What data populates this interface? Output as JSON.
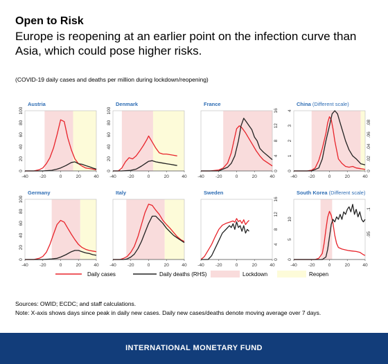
{
  "header": {
    "title": "Open to Risk",
    "subtitle": "Europe is reopening at an earlier point on the infection curve than Asia, which could pose higher risks.",
    "caption": "(COVID-19 daily cases and deaths per million during lockdown/reopening)"
  },
  "legend": {
    "cases": "Daily cases",
    "deaths": "Daily deaths (RHS)",
    "lockdown": "Lockdown",
    "reopen": "Reopen"
  },
  "footnotes": {
    "sources": "Sources: OWID; ECDC; and staff calculations.",
    "note": "Note: X-axis shows days since peak in daily new cases. Daily new cases/deaths denote moving average over 7 days."
  },
  "footer": {
    "org": "INTERNATIONAL MONETARY FUND"
  },
  "colors": {
    "cases": "#e8242b",
    "deaths": "#222222",
    "lockdown": "#f9dcdc",
    "reopen": "#fdfbd9",
    "title_blue": "#2e6db4",
    "footer": "#123d7a"
  },
  "chart_data": [
    {
      "type": "line",
      "title": "Austria",
      "scale_note": "",
      "xlim": [
        -40,
        40
      ],
      "xticks": [
        -40,
        -20,
        0,
        20,
        40
      ],
      "ylim": [
        0,
        100
      ],
      "yticks": [
        0,
        20,
        40,
        60,
        80,
        100
      ],
      "y2": null,
      "lockdown": [
        -18,
        14
      ],
      "reopen": [
        14,
        40
      ],
      "series": [
        {
          "name": "Daily cases",
          "axis": "y",
          "x": [
            -40,
            -30,
            -24,
            -20,
            -16,
            -12,
            -8,
            -4,
            0,
            4,
            8,
            12,
            16,
            20,
            24,
            28,
            32,
            36,
            40
          ],
          "values": [
            0,
            0,
            2,
            5,
            12,
            22,
            38,
            60,
            85,
            82,
            55,
            35,
            20,
            12,
            8,
            5,
            4,
            3,
            2
          ]
        },
        {
          "name": "Daily deaths",
          "axis": "y",
          "x": [
            -40,
            -20,
            -10,
            -4,
            0,
            6,
            12,
            16,
            20,
            24,
            28,
            32,
            36,
            40
          ],
          "values": [
            0,
            0,
            1,
            3,
            5,
            9,
            14,
            15,
            12,
            11,
            9,
            7,
            5,
            3
          ]
        }
      ]
    },
    {
      "type": "line",
      "title": "Denmark",
      "scale_note": "",
      "xlim": [
        -40,
        40
      ],
      "xticks": [
        -40,
        -20,
        0,
        20,
        40
      ],
      "ylim": [
        0,
        100
      ],
      "yticks": [
        0,
        20,
        40,
        60,
        80,
        100
      ],
      "y2": null,
      "lockdown": [
        -30,
        5
      ],
      "reopen": [
        5,
        40
      ],
      "series": [
        {
          "name": "Daily cases",
          "axis": "y",
          "x": [
            -40,
            -34,
            -30,
            -26,
            -22,
            -18,
            -14,
            -10,
            -6,
            -2,
            0,
            4,
            8,
            12,
            16,
            20,
            24,
            28,
            32
          ],
          "values": [
            0,
            0,
            5,
            15,
            22,
            20,
            25,
            33,
            42,
            52,
            58,
            48,
            38,
            30,
            28,
            28,
            27,
            26,
            25
          ]
        },
        {
          "name": "Daily deaths",
          "axis": "y",
          "x": [
            -40,
            -30,
            -20,
            -14,
            -8,
            -4,
            0,
            4,
            8,
            12,
            16,
            20,
            24,
            28,
            32
          ],
          "values": [
            0,
            0,
            1,
            3,
            8,
            12,
            16,
            17,
            15,
            14,
            13,
            12,
            11,
            10,
            9
          ]
        }
      ]
    },
    {
      "type": "line",
      "title": "France",
      "scale_note": "",
      "xlim": [
        -40,
        40
      ],
      "xticks": [
        -40,
        -20,
        0,
        20,
        40
      ],
      "ylim": [
        0,
        60
      ],
      "yticks": [],
      "y2": {
        "lim": [
          0,
          16
        ],
        "ticks": [
          0,
          4,
          8,
          12,
          16
        ]
      },
      "lockdown": [
        -15,
        40
      ],
      "reopen": null,
      "series": [
        {
          "name": "Daily cases",
          "axis": "y",
          "x": [
            -40,
            -30,
            -20,
            -15,
            -10,
            -6,
            -3,
            0,
            3,
            6,
            10,
            14,
            18,
            22,
            26,
            30,
            35,
            40
          ],
          "values": [
            0,
            0,
            1,
            3,
            8,
            18,
            30,
            42,
            45,
            43,
            38,
            32,
            26,
            20,
            15,
            11,
            8,
            5
          ]
        },
        {
          "name": "Daily deaths",
          "axis": "y2",
          "x": [
            -40,
            -20,
            -10,
            -6,
            -2,
            2,
            5,
            8,
            11,
            14,
            17,
            20,
            23,
            26,
            30,
            35,
            40
          ],
          "values": [
            0,
            0,
            1,
            2,
            4,
            8,
            12,
            14,
            13,
            12,
            11,
            9,
            8,
            6,
            5,
            4,
            3
          ]
        }
      ]
    },
    {
      "type": "line",
      "title": "China",
      "scale_note": "(Different scale)",
      "xlim": [
        -40,
        40
      ],
      "xticks": [
        -40,
        -20,
        0,
        20,
        40
      ],
      "ylim": [
        0,
        4
      ],
      "yticks": [
        0,
        1,
        2,
        3,
        4
      ],
      "y2": {
        "lim": [
          0,
          0.1
        ],
        "ticks": [
          0,
          0.02,
          0.04,
          0.06,
          0.08
        ]
      },
      "lockdown": [
        -20,
        35
      ],
      "reopen": [
        35,
        40
      ],
      "series": [
        {
          "name": "Daily cases",
          "axis": "y",
          "x": [
            -40,
            -25,
            -20,
            -16,
            -12,
            -8,
            -4,
            -2,
            0,
            2,
            4,
            6,
            8,
            10,
            14,
            18,
            22,
            26,
            30,
            40
          ],
          "values": [
            0,
            0,
            0.05,
            0.2,
            0.7,
            1.5,
            2.5,
            3.2,
            3.6,
            3.4,
            2.8,
            2.0,
            1.4,
            0.8,
            0.5,
            0.3,
            0.25,
            0.3,
            0.2,
            0.1
          ]
        },
        {
          "name": "Daily deaths",
          "axis": "y2",
          "x": [
            -40,
            -20,
            -12,
            -8,
            -4,
            0,
            3,
            6,
            9,
            12,
            15,
            18,
            22,
            26,
            30,
            35,
            40
          ],
          "values": [
            0,
            0,
            0.005,
            0.02,
            0.05,
            0.075,
            0.095,
            0.1,
            0.095,
            0.08,
            0.065,
            0.05,
            0.035,
            0.025,
            0.02,
            0.012,
            0.01
          ]
        }
      ]
    },
    {
      "type": "line",
      "title": "Germany",
      "scale_note": "",
      "xlim": [
        -40,
        40
      ],
      "xticks": [
        -40,
        -20,
        0,
        20,
        40
      ],
      "ylim": [
        0,
        100
      ],
      "yticks": [
        0,
        20,
        40,
        60,
        80,
        100
      ],
      "y2": null,
      "lockdown": [
        -10,
        22
      ],
      "reopen": [
        22,
        40
      ],
      "series": [
        {
          "name": "Daily cases",
          "axis": "y",
          "x": [
            -40,
            -30,
            -24,
            -20,
            -16,
            -12,
            -8,
            -4,
            0,
            4,
            8,
            12,
            16,
            20,
            24,
            28,
            32,
            36,
            40
          ],
          "values": [
            0,
            0,
            2,
            5,
            12,
            25,
            42,
            58,
            65,
            62,
            52,
            42,
            33,
            25,
            20,
            17,
            15,
            14,
            13
          ]
        },
        {
          "name": "Daily deaths",
          "axis": "y",
          "x": [
            -40,
            -20,
            -10,
            -4,
            0,
            6,
            12,
            16,
            20,
            24,
            28,
            32,
            36,
            40
          ],
          "values": [
            0,
            0,
            1,
            2,
            4,
            8,
            13,
            15,
            15,
            13,
            11,
            10,
            8,
            7
          ]
        }
      ]
    },
    {
      "type": "line",
      "title": "Italy",
      "scale_note": "",
      "xlim": [
        -40,
        40
      ],
      "xticks": [
        -40,
        -20,
        0,
        20,
        40
      ],
      "ylim": [
        0,
        100
      ],
      "yticks": [],
      "y2": null,
      "lockdown": [
        -25,
        18
      ],
      "reopen": [
        18,
        40
      ],
      "series": [
        {
          "name": "Daily cases",
          "axis": "y",
          "x": [
            -40,
            -32,
            -28,
            -24,
            -20,
            -16,
            -12,
            -8,
            -4,
            0,
            4,
            8,
            12,
            16,
            20,
            24,
            28,
            32,
            36,
            40
          ],
          "values": [
            0,
            0,
            2,
            5,
            12,
            22,
            38,
            58,
            78,
            92,
            90,
            82,
            75,
            65,
            58,
            52,
            45,
            38,
            33,
            30
          ]
        },
        {
          "name": "Daily deaths",
          "axis": "y",
          "x": [
            -40,
            -28,
            -24,
            -20,
            -16,
            -12,
            -8,
            -4,
            0,
            4,
            8,
            12,
            16,
            20,
            24,
            28,
            32,
            36,
            40
          ],
          "values": [
            0,
            0,
            1,
            4,
            9,
            18,
            30,
            45,
            60,
            72,
            72,
            66,
            60,
            52,
            46,
            40,
            36,
            32,
            28
          ]
        }
      ]
    },
    {
      "type": "line",
      "title": "Sweden",
      "scale_note": "",
      "xlim": [
        -40,
        40
      ],
      "xticks": [
        -40,
        -20,
        0,
        20,
        40
      ],
      "ylim": [
        0,
        100
      ],
      "yticks": [],
      "y2": {
        "lim": [
          0,
          16
        ],
        "ticks": [
          0,
          4,
          8,
          12,
          16
        ]
      },
      "lockdown": null,
      "reopen": null,
      "series": [
        {
          "name": "Daily cases",
          "axis": "y",
          "x": [
            -40,
            -36,
            -32,
            -28,
            -24,
            -20,
            -16,
            -12,
            -8,
            -4,
            -2,
            0,
            2,
            4,
            6,
            8,
            10,
            12,
            14
          ],
          "values": [
            0,
            5,
            15,
            25,
            38,
            50,
            57,
            60,
            62,
            64,
            62,
            68,
            63,
            65,
            60,
            66,
            58,
            62,
            65
          ]
        },
        {
          "name": "Daily deaths",
          "axis": "y2",
          "x": [
            -40,
            -32,
            -28,
            -24,
            -20,
            -16,
            -12,
            -8,
            -6,
            -4,
            -2,
            0,
            2,
            4,
            6,
            8,
            10,
            12,
            14
          ],
          "values": [
            0,
            0,
            1,
            3,
            5,
            7,
            8,
            9,
            8.5,
            9.5,
            8,
            10,
            8.5,
            9,
            7.5,
            9,
            7,
            8,
            7.5
          ]
        }
      ]
    },
    {
      "type": "line",
      "title": "South Korea",
      "scale_note": "(Different scale)",
      "xlim": [
        -40,
        40
      ],
      "xticks": [
        -40,
        -20,
        0,
        20,
        40
      ],
      "ylim": [
        0,
        15
      ],
      "yticks": [
        0,
        5,
        10
      ],
      "y2": {
        "lim": [
          0,
          0.12
        ],
        "ticks": [
          0.05,
          0.1
        ]
      },
      "lockdown": [
        -10,
        3
      ],
      "reopen": null,
      "series": [
        {
          "name": "Daily cases",
          "axis": "y",
          "x": [
            -40,
            -16,
            -12,
            -8,
            -6,
            -4,
            -2,
            0,
            2,
            4,
            6,
            8,
            10,
            14,
            18,
            22,
            26,
            30,
            34,
            38,
            40
          ],
          "values": [
            0,
            0,
            0.3,
            1.5,
            4,
            7.5,
            10.5,
            12,
            11,
            9,
            6,
            4,
            3,
            2.6,
            2.4,
            2.2,
            2.1,
            2.0,
            1.8,
            1.2,
            1.0
          ]
        },
        {
          "name": "Daily deaths",
          "axis": "y2",
          "x": [
            -40,
            -8,
            -4,
            -2,
            0,
            2,
            4,
            6,
            8,
            10,
            12,
            14,
            16,
            18,
            20,
            22,
            24,
            26,
            28,
            30,
            32,
            34,
            36,
            38,
            40
          ],
          "values": [
            0,
            0,
            0.005,
            0.02,
            0.045,
            0.07,
            0.08,
            0.075,
            0.085,
            0.08,
            0.09,
            0.08,
            0.095,
            0.09,
            0.1,
            0.105,
            0.095,
            0.11,
            0.09,
            0.1,
            0.085,
            0.095,
            0.08,
            0.075,
            0.08
          ]
        }
      ]
    }
  ]
}
